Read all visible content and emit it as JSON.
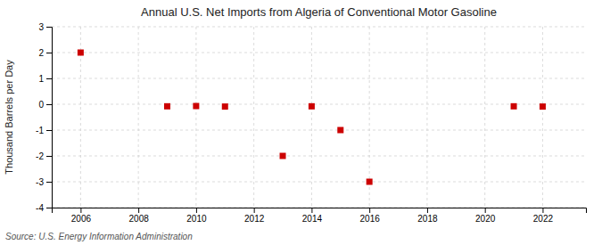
{
  "chart_data": {
    "type": "scatter",
    "title": "Annual U.S. Net Imports from Algeria of Conventional Motor Gasoline",
    "ylabel": "Thousand Barrels per Day",
    "source": "Source: U.S. Energy Information Administration",
    "x": [
      2006,
      2009,
      2010,
      2011,
      2013,
      2014,
      2015,
      2016,
      2021,
      2022
    ],
    "values": [
      2.0,
      -0.08,
      -0.07,
      -0.09,
      -2.0,
      -0.08,
      -1.0,
      -3.0,
      -0.08,
      -0.09
    ],
    "color": "#cc0000",
    "marker": "square",
    "xlim": [
      2005.0,
      2023.5
    ],
    "ylim": [
      -4,
      3
    ],
    "xticks": [
      2006,
      2008,
      2010,
      2012,
      2014,
      2016,
      2018,
      2020,
      2022
    ],
    "yticks": [
      -4,
      -3,
      -2,
      -1,
      0,
      1,
      2,
      3
    ],
    "grid": true
  }
}
